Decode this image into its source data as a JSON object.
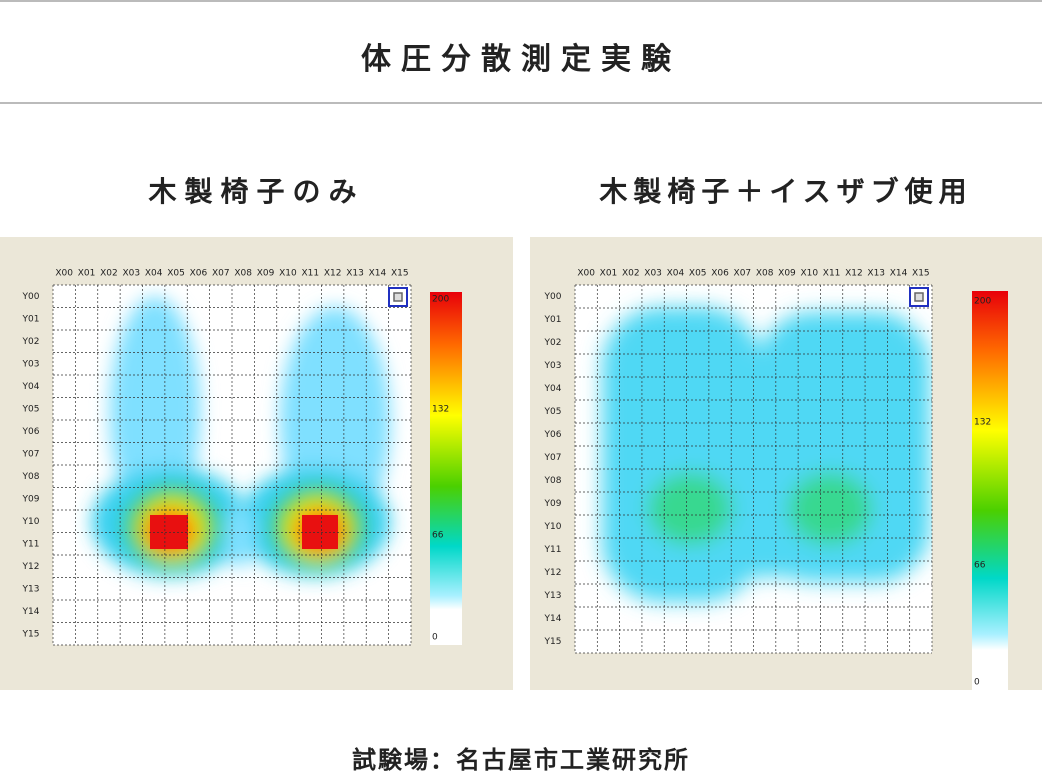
{
  "header": {
    "title": "体圧分散測定実験"
  },
  "panels": [
    {
      "title": "木製椅子のみ",
      "x_labels": [
        "X00",
        "X01",
        "X02",
        "X03",
        "X04",
        "X05",
        "X06",
        "X07",
        "X08",
        "X09",
        "X10",
        "X11",
        "X12",
        "X13",
        "X14",
        "X15"
      ],
      "y_labels": [
        "Y00",
        "Y01",
        "Y02",
        "Y03",
        "Y04",
        "Y05",
        "Y06",
        "Y07",
        "Y08",
        "Y09",
        "Y10",
        "Y11",
        "Y12",
        "Y13",
        "Y14",
        "Y15"
      ],
      "scale_labels": [
        200,
        132,
        66,
        0
      ]
    },
    {
      "title": "木製椅子＋イスザブ使用",
      "x_labels": [
        "X00",
        "X01",
        "X02",
        "X03",
        "X04",
        "X05",
        "X06",
        "X07",
        "X08",
        "X09",
        "X10",
        "X11",
        "X12",
        "X13",
        "X14",
        "X15"
      ],
      "y_labels": [
        "Y00",
        "Y01",
        "Y02",
        "Y03",
        "Y04",
        "Y05",
        "Y06",
        "Y07",
        "Y08",
        "Y09",
        "Y10",
        "Y11",
        "Y12",
        "Y13",
        "Y14",
        "Y15"
      ],
      "scale_labels": [
        200,
        132,
        66,
        0
      ]
    }
  ],
  "footer": "試験場：名古屋市工業研究所"
}
